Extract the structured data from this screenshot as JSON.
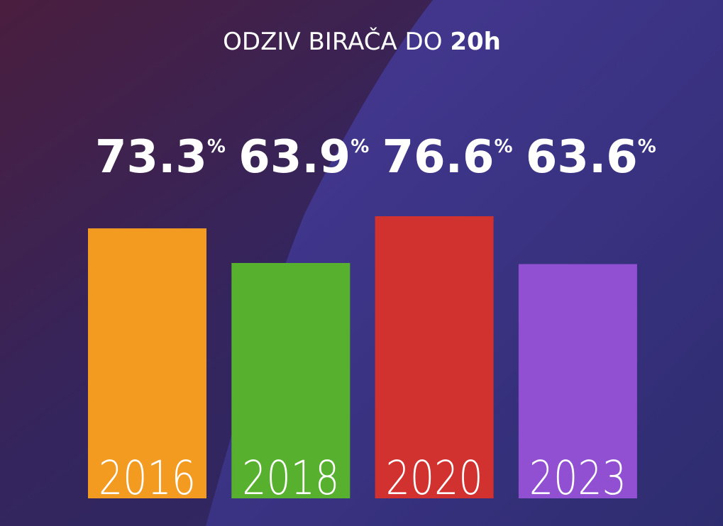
{
  "chart_data": {
    "type": "bar",
    "title": "ODZIV BIRAČA DO",
    "title_emphasis": "20h",
    "categories": [
      "2016",
      "2018",
      "2020",
      "2023"
    ],
    "values": [
      73.3,
      63.9,
      76.6,
      63.6
    ],
    "value_labels": [
      "73.3%",
      "63.9%",
      "76.6%",
      "63.6%"
    ],
    "colors": [
      "#f39a21",
      "#57b02e",
      "#d1312f",
      "#9150d2"
    ]
  }
}
